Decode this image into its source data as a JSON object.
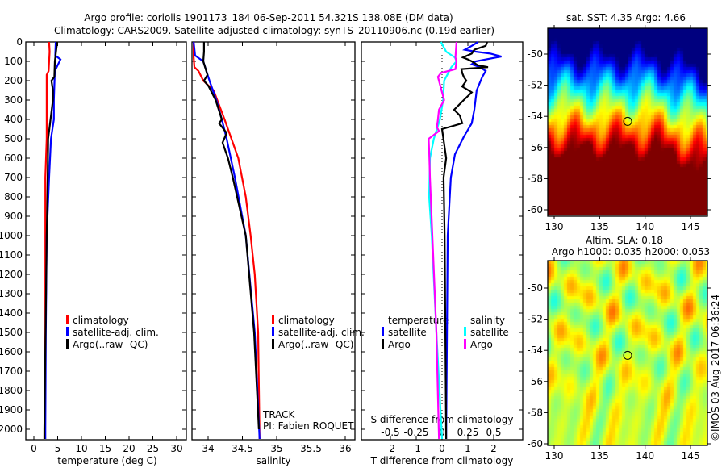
{
  "header": {
    "title_line1": "Argo profile: coriolis 1901173_184 06-Sep-2011 54.321S 138.08E (DM data)",
    "title_line2": "Climatology: CARS2009. Satellite-adjusted climatology: synTS_20110906.nc (0.19d earlier)"
  },
  "colors": {
    "climatology": "#ff0000",
    "satellite": "#0000ff",
    "argo": "#000000",
    "s_satellite": "#00ffff",
    "s_argo": "#ff00ff"
  },
  "chart_data": [
    {
      "type": "line",
      "name": "temperature-profile",
      "xlabel": "temperature (deg C)",
      "ylabel": "",
      "xlim": [
        -1.7,
        32
      ],
      "ylim": [
        2050,
        0
      ],
      "xticks": [
        "0",
        "5",
        "10",
        "15",
        "20",
        "25",
        "30"
      ],
      "yticks": [
        "0",
        "100",
        "200",
        "300",
        "400",
        "500",
        "600",
        "700",
        "800",
        "900",
        "1000",
        "1100",
        "1200",
        "1300",
        "1400",
        "1500",
        "1600",
        "1700",
        "1800",
        "1900",
        "2000"
      ],
      "legend": [
        "climatology",
        "satellite-adj. clim.",
        "Argo(..raw -QC)"
      ],
      "series": [
        {
          "name": "climatology",
          "color": "#ff0000",
          "depth": [
            0,
            50,
            150,
            170,
            500,
            700,
            1000,
            1500,
            2050
          ],
          "values": [
            3.2,
            3.3,
            3.1,
            2.7,
            2.7,
            2.4,
            2.4,
            2.4,
            2.2
          ]
        },
        {
          "name": "satellite-adj. clim.",
          "color": "#0000ff",
          "depth": [
            0,
            70,
            90,
            150,
            300,
            400,
            500,
            700,
            1000,
            1500,
            2000,
            2050
          ],
          "values": [
            4.6,
            4.5,
            5.6,
            4.4,
            4.2,
            4.2,
            3.6,
            3.2,
            2.7,
            2.5,
            2.4,
            2.4
          ]
        },
        {
          "name": "Argo(..raw -QC)",
          "color": "#000000",
          "depth": [
            0,
            100,
            180,
            200,
            250,
            300,
            500,
            700,
            1000,
            2000,
            2050
          ],
          "values": [
            4.9,
            4.4,
            4.3,
            3.7,
            4.0,
            4.0,
            3.0,
            2.9,
            2.7,
            2.2,
            2.2
          ]
        }
      ]
    },
    {
      "type": "line",
      "name": "salinity-profile",
      "xlabel": "salinity",
      "xlim": [
        33.8,
        36.15
      ],
      "ylim": [
        2050,
        0
      ],
      "xticks": [
        "34",
        "34.5",
        "35",
        "35.5",
        "36"
      ],
      "legend": [
        "climatology",
        "satellite-adj. clim.",
        "Argo(..raw -QC)"
      ],
      "annotation": [
        "TRACK",
        "PI: Fabien ROQUET"
      ],
      "series": [
        {
          "name": "climatology",
          "color": "#ff0000",
          "depth": [
            0,
            80,
            130,
            150,
            200,
            250,
            400,
            500,
            600,
            800,
            1000,
            1200,
            1500,
            2050
          ],
          "values": [
            33.79,
            33.79,
            33.8,
            33.86,
            33.93,
            34.08,
            34.24,
            34.34,
            34.44,
            34.55,
            34.62,
            34.68,
            34.73,
            34.75
          ]
        },
        {
          "name": "satellite-adj. clim.",
          "color": "#0000ff",
          "depth": [
            0,
            70,
            100,
            200,
            300,
            400,
            500,
            700,
            1000,
            1500,
            2050
          ],
          "values": [
            33.79,
            33.81,
            33.93,
            34.02,
            34.12,
            34.2,
            34.27,
            34.39,
            34.55,
            34.68,
            34.75
          ]
        },
        {
          "name": "Argo(..raw -QC)",
          "color": "#000000",
          "depth": [
            0,
            50,
            100,
            170,
            200,
            230,
            300,
            400,
            420,
            470,
            520,
            600,
            700,
            1000,
            1500,
            2000
          ],
          "values": [
            33.94,
            33.94,
            33.93,
            33.99,
            33.94,
            34.01,
            34.11,
            34.2,
            34.16,
            34.27,
            34.21,
            34.29,
            34.36,
            34.55,
            34.67,
            34.74
          ]
        }
      ]
    },
    {
      "type": "line",
      "name": "difference-profile",
      "xlabel": "T difference from climatology",
      "xlabel_top": "S difference from climatology",
      "xlim": [
        -3.1,
        3.15
      ],
      "ylim": [
        2050,
        0
      ],
      "xticks": [
        "-2",
        "-1",
        "0",
        "1",
        "2"
      ],
      "sticks": [
        "-0.5",
        "-0.25",
        "0",
        "0.25",
        "0.5"
      ],
      "legend_headers": [
        "temperature",
        "salinity"
      ],
      "legend": [
        "satellite",
        "Argo",
        "satellite",
        "Argo"
      ],
      "series": [
        {
          "name": "T satellite",
          "color": "#0000ff",
          "axis": "T",
          "depth": [
            0,
            20,
            40,
            50,
            60,
            75,
            80,
            100,
            115,
            130,
            150,
            180,
            250,
            350,
            420,
            490,
            580,
            700,
            1000,
            2050
          ],
          "values": [
            1.4,
            1.15,
            0.88,
            1.3,
            1.88,
            2.3,
            2.1,
            1.3,
            1.15,
            1.47,
            1.69,
            1.56,
            1.34,
            1.25,
            1.15,
            0.84,
            0.5,
            0.34,
            0.22,
            0.16
          ]
        },
        {
          "name": "T Argo",
          "color": "#000000",
          "axis": "T",
          "depth": [
            0,
            20,
            40,
            60,
            80,
            90,
            100,
            120,
            130,
            140,
            160,
            180,
            200,
            230,
            260,
            300,
            350,
            380,
            420,
            450,
            600,
            700,
            1000,
            2050
          ],
          "values": [
            1.75,
            1.69,
            1.25,
            1.15,
            0.81,
            1.0,
            1.15,
            1.38,
            1.78,
            0.75,
            0.78,
            0.84,
            0.94,
            0.78,
            1.15,
            0.84,
            0.47,
            0.69,
            0.78,
            0.0,
            0.16,
            0.06,
            0.1,
            0.16
          ]
        },
        {
          "name": "S satellite",
          "color": "#00ffff",
          "axis": "S",
          "depth": [
            0,
            50,
            80,
            100,
            130,
            200,
            300,
            400,
            500,
            600,
            800,
            1000,
            1500,
            2050
          ],
          "values": [
            -0.01,
            0.04,
            0.125,
            0.14,
            0.09,
            0.02,
            0.01,
            -0.02,
            -0.08,
            -0.117,
            -0.125,
            -0.1,
            -0.055,
            0.0
          ]
        },
        {
          "name": "S Argo",
          "color": "#ff00ff",
          "axis": "S",
          "depth": [
            0,
            80,
            100,
            140,
            160,
            180,
            220,
            300,
            350,
            400,
            440,
            460,
            500,
            560,
            700,
            1000,
            1500,
            2050
          ],
          "values": [
            0.14,
            0.13,
            0.14,
            0.13,
            -0.01,
            -0.04,
            -0.02,
            0.02,
            -0.03,
            -0.04,
            -0.05,
            -0.03,
            -0.13,
            -0.125,
            -0.117,
            -0.094,
            -0.055,
            -0.03
          ]
        }
      ]
    },
    {
      "type": "heatmap",
      "name": "sst-map",
      "title": "sat. SST: 4.35  Argo: 4.66",
      "xticks": [
        "130",
        "135",
        "140",
        "145"
      ],
      "yticks": [
        "-50",
        "-52",
        "-54",
        "-56",
        "-58",
        "-60"
      ],
      "float_position": {
        "lon": 138.08,
        "lat": -54.321
      }
    },
    {
      "type": "heatmap",
      "name": "sla-map",
      "title_line1": "Altim. SLA: 0.18",
      "title_line2": "Argo h1000: 0.035 h2000: 0.053",
      "xticks": [
        "130",
        "135",
        "140",
        "145"
      ],
      "yticks": [
        "-50",
        "-52",
        "-54",
        "-56",
        "-58",
        "-60"
      ],
      "float_position": {
        "lon": 138.08,
        "lat": -54.321
      }
    }
  ],
  "footer": {
    "credit": "©IMOS 03-Aug-2017 06:36:24"
  }
}
